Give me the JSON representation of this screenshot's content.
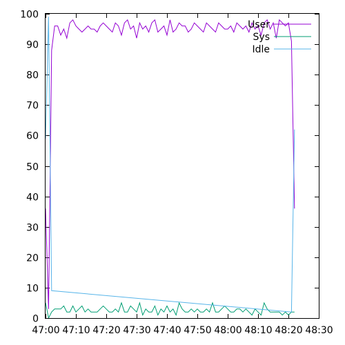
{
  "chart_data": {
    "type": "line",
    "title": "",
    "xlabel": "",
    "ylabel": "",
    "xlim": [
      "47:00",
      "48:30"
    ],
    "ylim": [
      0,
      100
    ],
    "grid": false,
    "legend_position": "top-right",
    "x_ticks": [
      "47:00",
      "47:10",
      "47:20",
      "47:30",
      "47:40",
      "47:50",
      "48:00",
      "48:10",
      "48:20",
      "48:30"
    ],
    "y_ticks": [
      0,
      10,
      20,
      30,
      40,
      50,
      60,
      70,
      80,
      90,
      100
    ],
    "series": [
      {
        "name": "User",
        "color": "#9400d3",
        "x": [
          "47:00",
          "47:01",
          "47:02",
          "47:03",
          "47:04",
          "47:05",
          "47:06",
          "47:07",
          "47:08",
          "47:09",
          "47:10",
          "47:11",
          "47:12",
          "47:13",
          "47:14",
          "47:15",
          "47:16",
          "47:17",
          "47:18",
          "47:19",
          "47:20",
          "47:21",
          "47:22",
          "47:23",
          "47:24",
          "47:25",
          "47:26",
          "47:27",
          "47:28",
          "47:29",
          "47:30",
          "47:31",
          "47:32",
          "47:33",
          "47:34",
          "47:35",
          "47:36",
          "47:37",
          "47:38",
          "47:39",
          "47:40",
          "47:41",
          "47:42",
          "47:43",
          "47:44",
          "47:45",
          "47:46",
          "47:47",
          "47:48",
          "47:49",
          "47:50",
          "47:51",
          "47:52",
          "47:53",
          "47:54",
          "47:55",
          "47:56",
          "47:57",
          "47:58",
          "47:59",
          "48:00",
          "48:01",
          "48:02",
          "48:03",
          "48:04",
          "48:05",
          "48:06",
          "48:07",
          "48:08",
          "48:09",
          "48:10",
          "48:11",
          "48:12",
          "48:13",
          "48:14",
          "48:15",
          "48:16",
          "48:17",
          "48:18",
          "48:19",
          "48:20",
          "48:21",
          "48:22"
        ],
        "values": [
          36,
          3,
          88,
          96,
          96,
          93,
          95,
          92,
          97,
          98,
          96,
          95,
          94,
          95,
          96,
          95,
          95,
          94,
          96,
          97,
          96,
          95,
          94,
          97,
          96,
          93,
          97,
          98,
          95,
          96,
          92,
          97,
          95,
          96,
          94,
          97,
          98,
          94,
          95,
          96,
          93,
          98,
          94,
          95,
          97,
          96,
          96,
          94,
          95,
          97,
          96,
          95,
          94,
          97,
          96,
          95,
          94,
          97,
          96,
          95,
          95,
          96,
          94,
          97,
          96,
          95,
          96,
          94,
          97,
          95,
          96,
          93,
          97,
          98,
          95,
          97,
          92,
          98,
          97,
          96,
          97,
          91,
          36
        ]
      },
      {
        "name": "Sys",
        "color": "#009e73",
        "x": [
          "47:00",
          "47:01",
          "47:02",
          "47:03",
          "47:04",
          "47:05",
          "47:06",
          "47:07",
          "47:08",
          "47:09",
          "47:10",
          "47:11",
          "47:12",
          "47:13",
          "47:14",
          "47:15",
          "47:16",
          "47:17",
          "47:18",
          "47:19",
          "47:20",
          "47:21",
          "47:22",
          "47:23",
          "47:24",
          "47:25",
          "47:26",
          "47:27",
          "47:28",
          "47:29",
          "47:30",
          "47:31",
          "47:32",
          "47:33",
          "47:34",
          "47:35",
          "47:36",
          "47:37",
          "47:38",
          "47:39",
          "47:40",
          "47:41",
          "47:42",
          "47:43",
          "47:44",
          "47:45",
          "47:46",
          "47:47",
          "47:48",
          "47:49",
          "47:50",
          "47:51",
          "47:52",
          "47:53",
          "47:54",
          "47:55",
          "47:56",
          "47:57",
          "47:58",
          "47:59",
          "48:00",
          "48:01",
          "48:02",
          "48:03",
          "48:04",
          "48:05",
          "48:06",
          "48:07",
          "48:08",
          "48:09",
          "48:10",
          "48:11",
          "48:12",
          "48:13",
          "48:14",
          "48:15",
          "48:16",
          "48:17",
          "48:18",
          "48:19",
          "48:20",
          "48:21",
          "48:22"
        ],
        "values": [
          5,
          0,
          2,
          3,
          3,
          3,
          4,
          2,
          2,
          4,
          2,
          3,
          4,
          2,
          3,
          2,
          2,
          2,
          3,
          4,
          3,
          2,
          2,
          3,
          2,
          5,
          2,
          2,
          4,
          3,
          2,
          5,
          1,
          3,
          2,
          2,
          4,
          1,
          3,
          2,
          4,
          2,
          3,
          1,
          5,
          3,
          2,
          2,
          3,
          2,
          3,
          2,
          2,
          3,
          2,
          5,
          2,
          2,
          3,
          4,
          3,
          2,
          2,
          3,
          3,
          2,
          3,
          2,
          1,
          3,
          2,
          1,
          5,
          3,
          2,
          2,
          2,
          2,
          1,
          2,
          1,
          2,
          2
        ]
      },
      {
        "name": "Idle",
        "color": "#56b4e9",
        "x": [
          "47:00",
          "47:01",
          "47:02",
          "48:21",
          "48:22"
        ],
        "values": [
          59,
          99,
          9,
          2,
          62
        ]
      }
    ]
  }
}
